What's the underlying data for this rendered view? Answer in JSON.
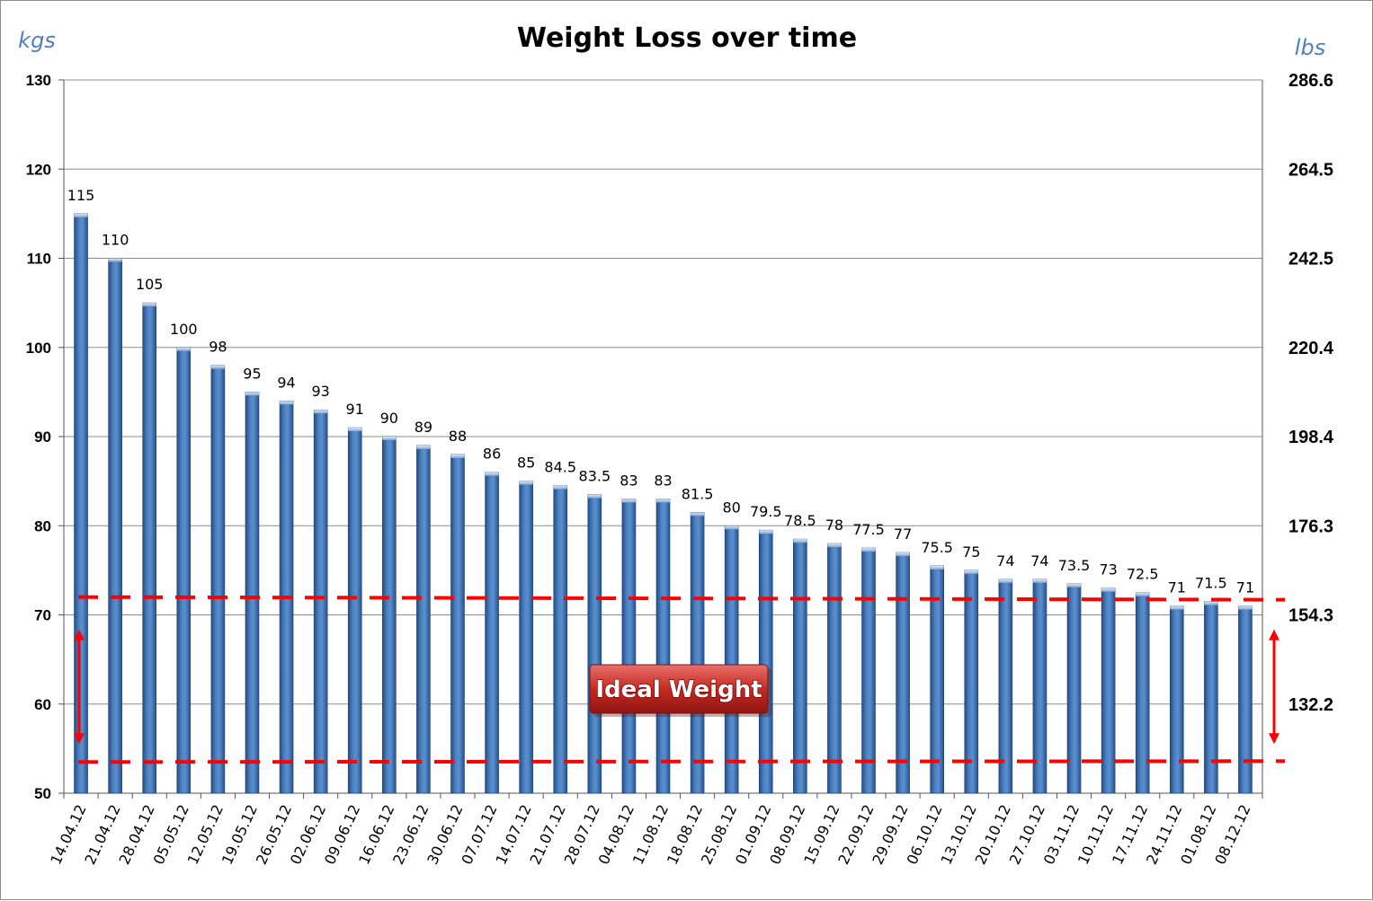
{
  "chart_data": {
    "type": "bar",
    "title": "Weight Loss over time",
    "ylabel_left": "kgs",
    "ylabel_right": "lbs",
    "ylim": [
      50,
      130
    ],
    "yticks_left": [
      "50",
      "60",
      "70",
      "80",
      "90",
      "100",
      "110",
      "120",
      "130"
    ],
    "yticks_right": [
      "132.2",
      "154.3",
      "176.3",
      "198.4",
      "220.4",
      "242.5",
      "264.5",
      "286.6"
    ],
    "categories": [
      "14.04.12",
      "21.04.12",
      "28.04.12",
      "05.05.12",
      "12.05.12",
      "19.05.12",
      "26.05.12",
      "02.06.12",
      "09.06.12",
      "16.06.12",
      "23.06.12",
      "30.06.12",
      "07.07.12",
      "14.07.12",
      "21.07.12",
      "28.07.12",
      "04.08.12",
      "11.08.12",
      "18.08.12",
      "25.08.12",
      "01.09.12",
      "08.09.12",
      "15.09.12",
      "22.09.12",
      "29.09.12",
      "06.10.12",
      "13.10.12",
      "20.10.12",
      "27.10.12",
      "03.11.12",
      "10.11.12",
      "17.11.12",
      "24.11.12",
      "01.08.12",
      "08.12.12"
    ],
    "values": [
      115,
      110,
      105,
      100,
      98,
      95,
      94,
      93,
      91,
      90,
      89,
      88,
      86,
      85,
      84.5,
      83.5,
      83,
      83,
      81.5,
      80,
      79.5,
      78.5,
      78,
      77.5,
      77,
      75.5,
      75,
      74,
      74,
      73.5,
      73,
      72.5,
      71,
      71.5,
      71
    ],
    "data_labels": [
      "115",
      "110",
      "105",
      "100",
      "98",
      "95",
      "94",
      "93",
      "91",
      "90",
      "89",
      "88",
      "86",
      "85",
      "84.5",
      "83.5",
      "83",
      "83",
      "81.5",
      "80",
      "79.5",
      "78.5",
      "78",
      "77.5",
      "77",
      "75.5",
      "75",
      "74",
      "74",
      "73.5",
      "73",
      "72.5",
      "71",
      "71.5",
      "71"
    ],
    "ideal_range": {
      "label": "Ideal Weight",
      "upper": 72,
      "lower": 53.5
    },
    "grid": true,
    "legend": "none",
    "colors": {
      "bar": "#4f81bd",
      "bar_dark": "#1f4e8c",
      "ideal": "#ff0000",
      "badge": "#c0392b",
      "unit": "#4f81bd"
    }
  }
}
